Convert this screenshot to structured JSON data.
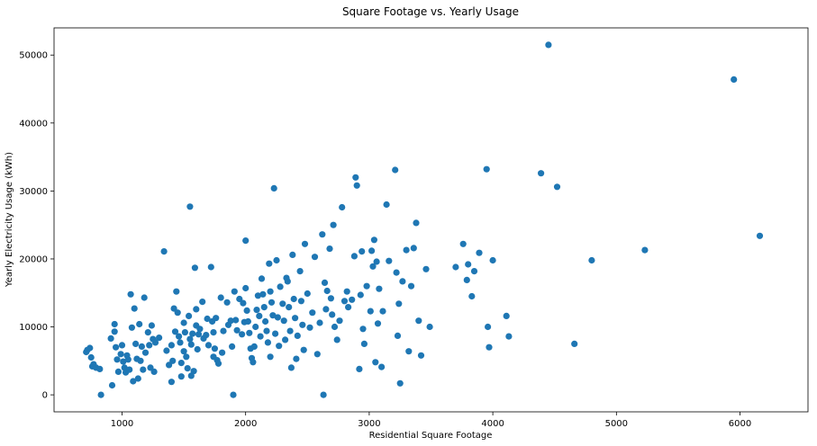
{
  "chart_data": {
    "type": "scatter",
    "title": "Square Footage vs. Yearly Usage",
    "xlabel": "Residential Square Footage",
    "ylabel": "Yearly Electricity Usage (kWh)",
    "xlim": [
      450,
      6550
    ],
    "ylim": [
      -2500,
      54000
    ],
    "xticks": [
      1000,
      2000,
      3000,
      4000,
      5000,
      6000
    ],
    "yticks": [
      0,
      10000,
      20000,
      30000,
      40000,
      50000
    ],
    "grid": false,
    "color": "#1f77b4",
    "series": [
      {
        "points": [
          [
            710,
            6300
          ],
          [
            720,
            6600
          ],
          [
            740,
            6900
          ],
          [
            750,
            5500
          ],
          [
            760,
            4200
          ],
          [
            770,
            4500
          ],
          [
            790,
            4000
          ],
          [
            820,
            3800
          ],
          [
            830,
            0
          ],
          [
            910,
            8300
          ],
          [
            920,
            1400
          ],
          [
            940,
            10400
          ],
          [
            940,
            9300
          ],
          [
            950,
            7000
          ],
          [
            960,
            5200
          ],
          [
            970,
            3400
          ],
          [
            990,
            6000
          ],
          [
            1000,
            7300
          ],
          [
            1010,
            4900
          ],
          [
            1020,
            4000
          ],
          [
            1030,
            3300
          ],
          [
            1040,
            5800
          ],
          [
            1050,
            5200
          ],
          [
            1060,
            3700
          ],
          [
            1070,
            14800
          ],
          [
            1080,
            9900
          ],
          [
            1090,
            2000
          ],
          [
            1100,
            12700
          ],
          [
            1110,
            7500
          ],
          [
            1120,
            5300
          ],
          [
            1130,
            2400
          ],
          [
            1140,
            10400
          ],
          [
            1150,
            5000
          ],
          [
            1160,
            7100
          ],
          [
            1170,
            3700
          ],
          [
            1180,
            14300
          ],
          [
            1190,
            6200
          ],
          [
            1210,
            9200
          ],
          [
            1220,
            7300
          ],
          [
            1230,
            4000
          ],
          [
            1240,
            10200
          ],
          [
            1250,
            8200
          ],
          [
            1260,
            3400
          ],
          [
            1270,
            7700
          ],
          [
            1300,
            8400
          ],
          [
            1340,
            21100
          ],
          [
            1360,
            6500
          ],
          [
            1380,
            4400
          ],
          [
            1400,
            7300
          ],
          [
            1400,
            1900
          ],
          [
            1410,
            5000
          ],
          [
            1420,
            12700
          ],
          [
            1430,
            9300
          ],
          [
            1440,
            15200
          ],
          [
            1450,
            12100
          ],
          [
            1460,
            8600
          ],
          [
            1470,
            7700
          ],
          [
            1480,
            4700
          ],
          [
            1480,
            2700
          ],
          [
            1500,
            10600
          ],
          [
            1500,
            6400
          ],
          [
            1510,
            9200
          ],
          [
            1520,
            5600
          ],
          [
            1530,
            3900
          ],
          [
            1540,
            11600
          ],
          [
            1550,
            27700
          ],
          [
            1550,
            8200
          ],
          [
            1560,
            7400
          ],
          [
            1560,
            2800
          ],
          [
            1570,
            9000
          ],
          [
            1580,
            3500
          ],
          [
            1590,
            18700
          ],
          [
            1600,
            12600
          ],
          [
            1600,
            10200
          ],
          [
            1610,
            6700
          ],
          [
            1620,
            8900
          ],
          [
            1630,
            9700
          ],
          [
            1650,
            13700
          ],
          [
            1660,
            8300
          ],
          [
            1680,
            8800
          ],
          [
            1690,
            11200
          ],
          [
            1700,
            7300
          ],
          [
            1720,
            18800
          ],
          [
            1730,
            10800
          ],
          [
            1740,
            9200
          ],
          [
            1740,
            5600
          ],
          [
            1750,
            6800
          ],
          [
            1760,
            11300
          ],
          [
            1770,
            5100
          ],
          [
            1780,
            4600
          ],
          [
            1800,
            14300
          ],
          [
            1810,
            6200
          ],
          [
            1820,
            9400
          ],
          [
            1850,
            13600
          ],
          [
            1860,
            10300
          ],
          [
            1880,
            10900
          ],
          [
            1890,
            7100
          ],
          [
            1900,
            0
          ],
          [
            1910,
            15200
          ],
          [
            1920,
            11000
          ],
          [
            1930,
            9500
          ],
          [
            1950,
            14100
          ],
          [
            1970,
            8900
          ],
          [
            1980,
            13500
          ],
          [
            1990,
            10700
          ],
          [
            2000,
            22700
          ],
          [
            2000,
            15700
          ],
          [
            2010,
            12400
          ],
          [
            2020,
            10800
          ],
          [
            2030,
            9100
          ],
          [
            2040,
            6800
          ],
          [
            2050,
            5400
          ],
          [
            2060,
            4800
          ],
          [
            2070,
            7100
          ],
          [
            2080,
            10000
          ],
          [
            2090,
            12500
          ],
          [
            2100,
            14600
          ],
          [
            2110,
            11600
          ],
          [
            2120,
            8600
          ],
          [
            2130,
            17100
          ],
          [
            2140,
            14800
          ],
          [
            2150,
            12900
          ],
          [
            2160,
            10800
          ],
          [
            2170,
            9400
          ],
          [
            2180,
            7700
          ],
          [
            2190,
            19300
          ],
          [
            2200,
            15200
          ],
          [
            2200,
            5600
          ],
          [
            2210,
            13600
          ],
          [
            2220,
            11700
          ],
          [
            2230,
            30400
          ],
          [
            2240,
            9000
          ],
          [
            2250,
            19800
          ],
          [
            2260,
            11400
          ],
          [
            2270,
            7200
          ],
          [
            2280,
            15900
          ],
          [
            2300,
            13400
          ],
          [
            2310,
            10900
          ],
          [
            2320,
            8100
          ],
          [
            2330,
            17200
          ],
          [
            2340,
            16700
          ],
          [
            2350,
            12900
          ],
          [
            2360,
            9400
          ],
          [
            2370,
            4000
          ],
          [
            2380,
            20600
          ],
          [
            2390,
            14100
          ],
          [
            2400,
            11300
          ],
          [
            2410,
            5300
          ],
          [
            2420,
            8700
          ],
          [
            2440,
            18200
          ],
          [
            2450,
            13800
          ],
          [
            2460,
            10300
          ],
          [
            2470,
            6600
          ],
          [
            2480,
            22200
          ],
          [
            2500,
            14900
          ],
          [
            2520,
            9900
          ],
          [
            2540,
            12100
          ],
          [
            2560,
            20300
          ],
          [
            2580,
            6000
          ],
          [
            2600,
            10600
          ],
          [
            2620,
            23600
          ],
          [
            2630,
            0
          ],
          [
            2640,
            16500
          ],
          [
            2650,
            12600
          ],
          [
            2660,
            15300
          ],
          [
            2680,
            21500
          ],
          [
            2690,
            14200
          ],
          [
            2700,
            11800
          ],
          [
            2710,
            25000
          ],
          [
            2720,
            10000
          ],
          [
            2740,
            8100
          ],
          [
            2760,
            10900
          ],
          [
            2780,
            27600
          ],
          [
            2800,
            13800
          ],
          [
            2820,
            15200
          ],
          [
            2830,
            12900
          ],
          [
            2860,
            14000
          ],
          [
            2880,
            20400
          ],
          [
            2890,
            32000
          ],
          [
            2900,
            30800
          ],
          [
            2920,
            3800
          ],
          [
            2930,
            14700
          ],
          [
            2940,
            21100
          ],
          [
            2950,
            9700
          ],
          [
            2960,
            7500
          ],
          [
            2980,
            16000
          ],
          [
            3010,
            12300
          ],
          [
            3020,
            21200
          ],
          [
            3030,
            18900
          ],
          [
            3040,
            22800
          ],
          [
            3050,
            4800
          ],
          [
            3060,
            19600
          ],
          [
            3070,
            10500
          ],
          [
            3080,
            15600
          ],
          [
            3100,
            4100
          ],
          [
            3110,
            12300
          ],
          [
            3140,
            28000
          ],
          [
            3160,
            19700
          ],
          [
            3210,
            33100
          ],
          [
            3220,
            18000
          ],
          [
            3230,
            8700
          ],
          [
            3240,
            13400
          ],
          [
            3250,
            1700
          ],
          [
            3270,
            16700
          ],
          [
            3300,
            21300
          ],
          [
            3320,
            6400
          ],
          [
            3340,
            16000
          ],
          [
            3360,
            21600
          ],
          [
            3380,
            25300
          ],
          [
            3400,
            10900
          ],
          [
            3420,
            5800
          ],
          [
            3460,
            18500
          ],
          [
            3490,
            10000
          ],
          [
            3700,
            18800
          ],
          [
            3760,
            22200
          ],
          [
            3790,
            16900
          ],
          [
            3800,
            19200
          ],
          [
            3830,
            14500
          ],
          [
            3850,
            18200
          ],
          [
            3890,
            20900
          ],
          [
            3950,
            33200
          ],
          [
            3960,
            10000
          ],
          [
            3970,
            7000
          ],
          [
            4000,
            19800
          ],
          [
            4110,
            11600
          ],
          [
            4130,
            8600
          ],
          [
            4390,
            32600
          ],
          [
            4450,
            51500
          ],
          [
            4520,
            30600
          ],
          [
            4660,
            7500
          ],
          [
            4800,
            19800
          ],
          [
            5230,
            21300
          ],
          [
            5950,
            46400
          ],
          [
            6160,
            23400
          ]
        ]
      }
    ]
  }
}
